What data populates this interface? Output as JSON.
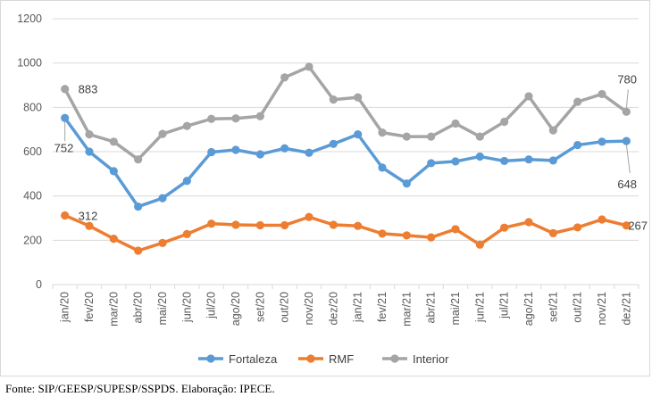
{
  "chart_data": {
    "type": "line",
    "categories": [
      "jan/20",
      "fev/20",
      "mar/20",
      "abr/20",
      "mai/20",
      "jun/20",
      "jul/20",
      "ago/20",
      "set/20",
      "out/20",
      "nov/20",
      "dez/20",
      "jan/21",
      "fev/21",
      "mar/21",
      "abr/21",
      "mai/21",
      "jun/21",
      "jul/21",
      "ago/21",
      "set/21",
      "out/21",
      "nov/21",
      "dez/21"
    ],
    "series": [
      {
        "name": "Fortaleza",
        "color": "#5b9bd5",
        "values": [
          752,
          600,
          512,
          352,
          390,
          468,
          598,
          608,
          588,
          615,
          595,
          635,
          678,
          528,
          456,
          548,
          556,
          578,
          558,
          565,
          560,
          630,
          645,
          648
        ]
      },
      {
        "name": "RMF",
        "color": "#ed7d31",
        "values": [
          312,
          265,
          207,
          153,
          188,
          228,
          275,
          270,
          268,
          268,
          305,
          270,
          265,
          230,
          222,
          213,
          250,
          180,
          257,
          282,
          232,
          258,
          294,
          267
        ]
      },
      {
        "name": "Interior",
        "color": "#a5a5a5",
        "values": [
          883,
          678,
          645,
          565,
          680,
          716,
          748,
          750,
          760,
          935,
          983,
          835,
          845,
          686,
          668,
          668,
          727,
          668,
          735,
          850,
          696,
          825,
          860,
          780
        ]
      }
    ],
    "ylim": [
      0,
      1200
    ],
    "yticks": [
      "0",
      "200",
      "400",
      "600",
      "800",
      "1000",
      "1200"
    ],
    "grid": true,
    "legend": "bottom",
    "annotations": [
      {
        "series": "Interior",
        "index": 0,
        "text": "883"
      },
      {
        "series": "Fortaleza",
        "index": 0,
        "text": "752"
      },
      {
        "series": "RMF",
        "index": 0,
        "text": "312"
      },
      {
        "series": "Interior",
        "index": 23,
        "text": "780"
      },
      {
        "series": "Fortaleza",
        "index": 23,
        "text": "648"
      },
      {
        "series": "RMF",
        "index": 23,
        "text": "267"
      }
    ]
  },
  "source": "Fonte: SIP/GEESP/SUPESP/SSPDS. Elaboração: IPECE."
}
